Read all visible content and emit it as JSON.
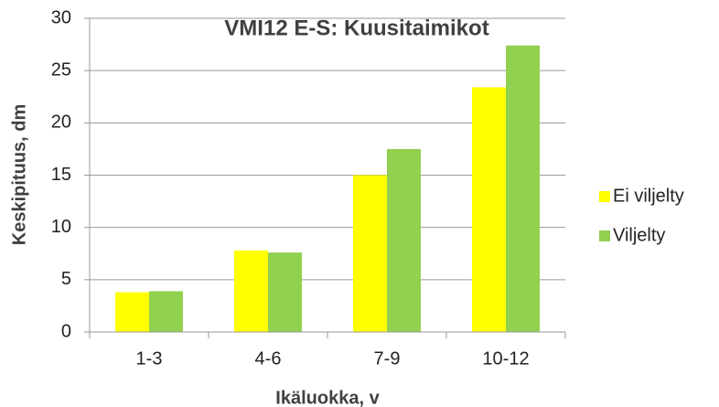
{
  "chart_data": {
    "type": "bar",
    "title": "VMI12 E-S: Kuusitaimikot",
    "xlabel": "Ikäluokka, v",
    "ylabel": "Keskipituus, dm",
    "categories": [
      "1-3",
      "4-6",
      "7-9",
      "10-12"
    ],
    "series": [
      {
        "name": "Ei viljelty",
        "color": "#ffff00",
        "values": [
          3.8,
          7.8,
          15.0,
          23.4
        ]
      },
      {
        "name": "Viljelty",
        "color": "#92d050",
        "values": [
          3.9,
          7.6,
          17.5,
          27.4
        ]
      }
    ],
    "ylim": [
      0,
      30
    ],
    "yticks": [
      0,
      5,
      10,
      15,
      20,
      25,
      30
    ],
    "grid": true,
    "legend": "right"
  }
}
